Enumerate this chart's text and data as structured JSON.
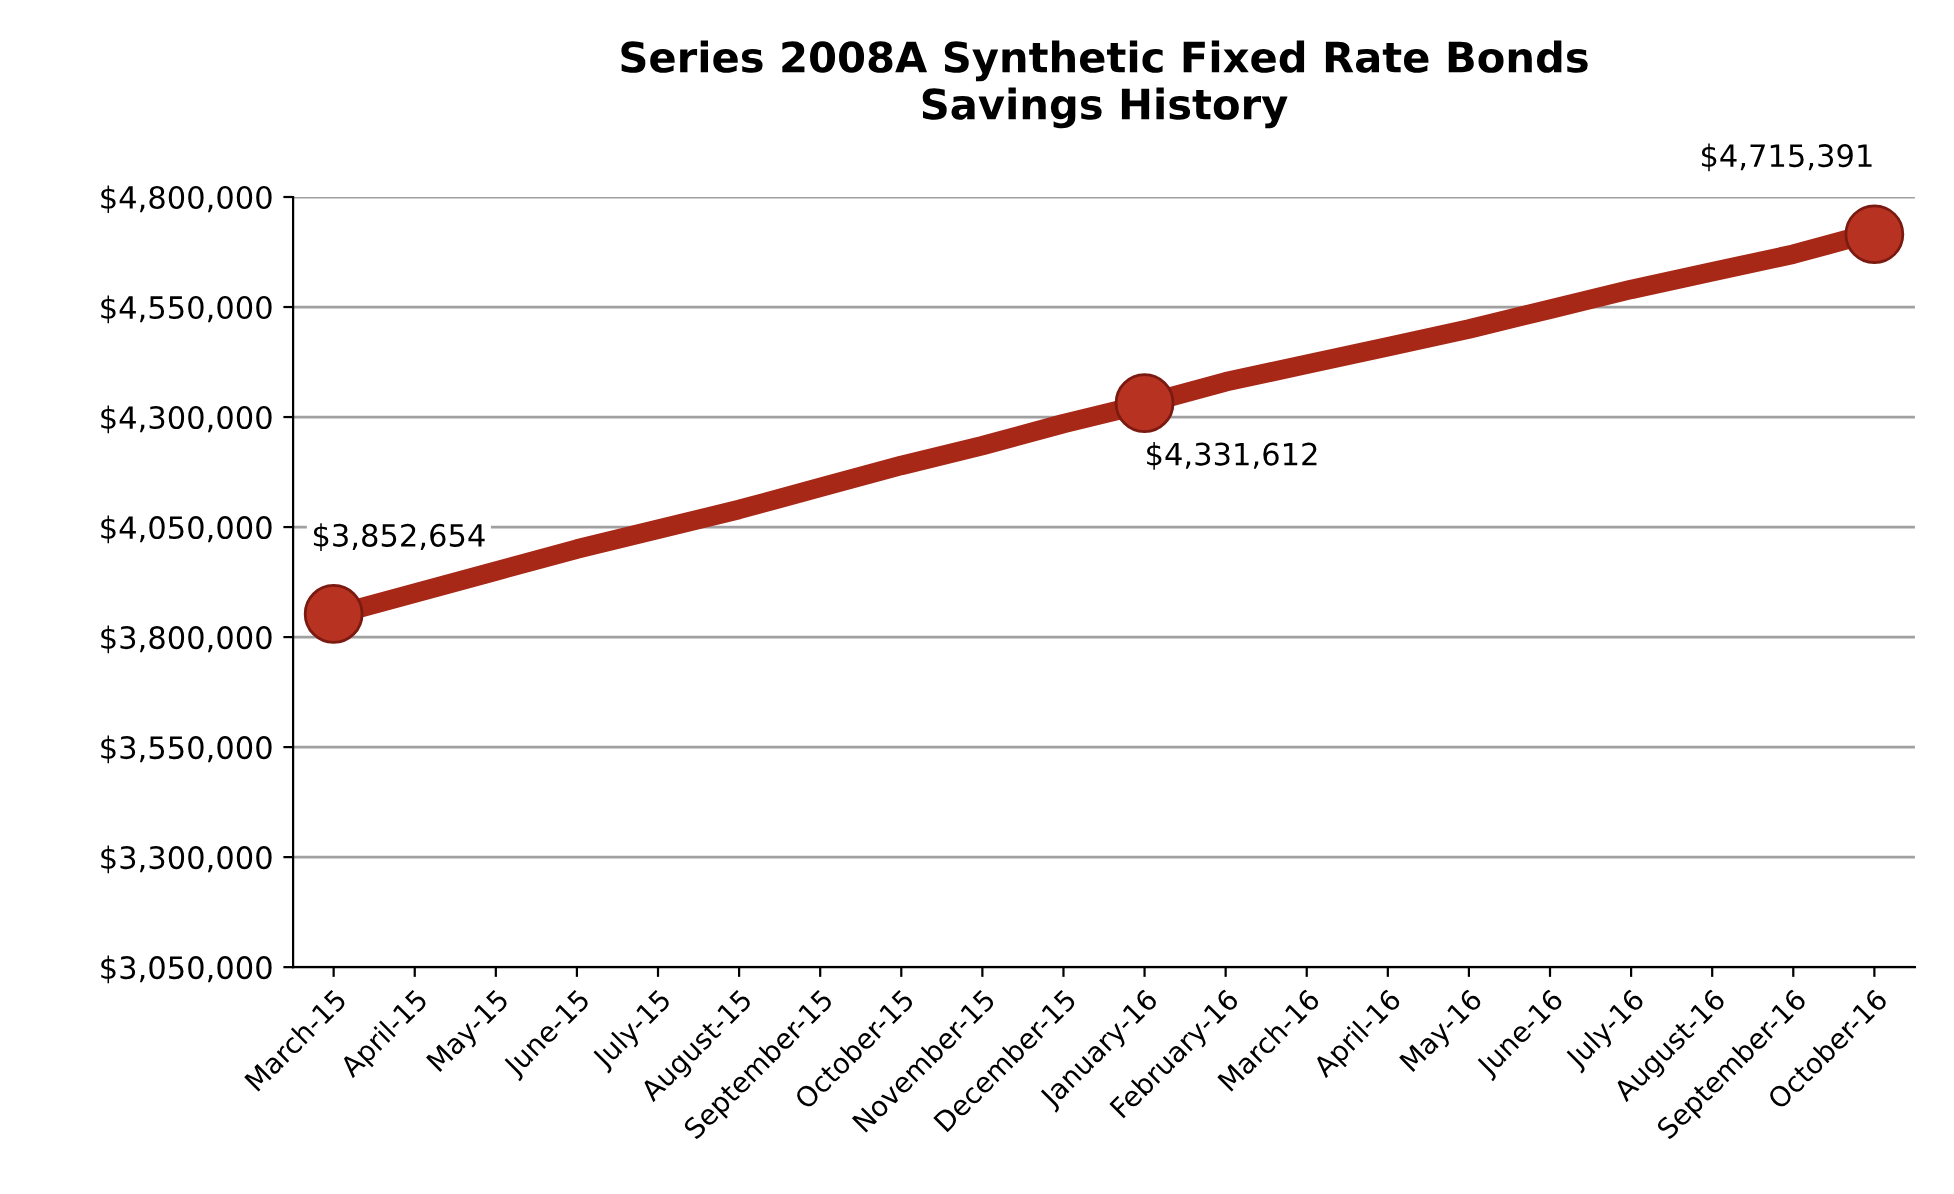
{
  "chart_data": {
    "type": "line",
    "title": "Series 2008A Synthetic Fixed Rate Bonds\nSavings History",
    "categories": [
      "March-15",
      "April-15",
      "May-15",
      "June-15",
      "July-15",
      "August-15",
      "September-15",
      "October-15",
      "November-15",
      "December-15",
      "January-16",
      "February-16",
      "March-16",
      "April-16",
      "May-16",
      "June-16",
      "July-16",
      "August-16",
      "September-16",
      "October-16"
    ],
    "series": [
      {
        "color": "#a82818",
        "line_style": "solid",
        "marker": "none",
        "values": [
          3850000,
          3900000,
          3950000,
          4000000,
          4045000,
          4090000,
          4140000,
          4190000,
          4235000,
          4285000,
          4330000,
          4380000,
          4420000,
          4460000,
          4500000,
          4545000,
          4590000,
          4630000,
          4670000,
          4720000
        ]
      },
      {
        "type": "scatter",
        "color": "#b83222",
        "marker": "circle",
        "values": [
          3852654,
          null,
          null,
          null,
          null,
          null,
          null,
          null,
          null,
          null,
          4331612,
          null,
          null,
          null,
          null,
          null,
          null,
          null,
          null,
          4715391
        ],
        "value_labels": [
          "$3,852,654",
          null,
          null,
          null,
          null,
          null,
          null,
          null,
          null,
          null,
          "$4,331,612",
          null,
          null,
          null,
          null,
          null,
          null,
          null,
          null,
          "$4,715,391"
        ]
      }
    ],
    "ylim": [
      3050000,
      4800000
    ],
    "yticks": [
      {
        "value": 3050000,
        "label": "$3,050,000"
      },
      {
        "value": 3300000,
        "label": "$3,300,000"
      },
      {
        "value": 3550000,
        "label": "$3,550,000"
      },
      {
        "value": 3800000,
        "label": "$3,800,000"
      },
      {
        "value": 4050000,
        "label": "$4,050,000"
      },
      {
        "value": 4300000,
        "label": "$4,300,000"
      },
      {
        "value": 4550000,
        "label": "$4,550,000"
      },
      {
        "value": 4800000,
        "label": "$4,800,000"
      }
    ],
    "grid": "y",
    "legend": false
  }
}
